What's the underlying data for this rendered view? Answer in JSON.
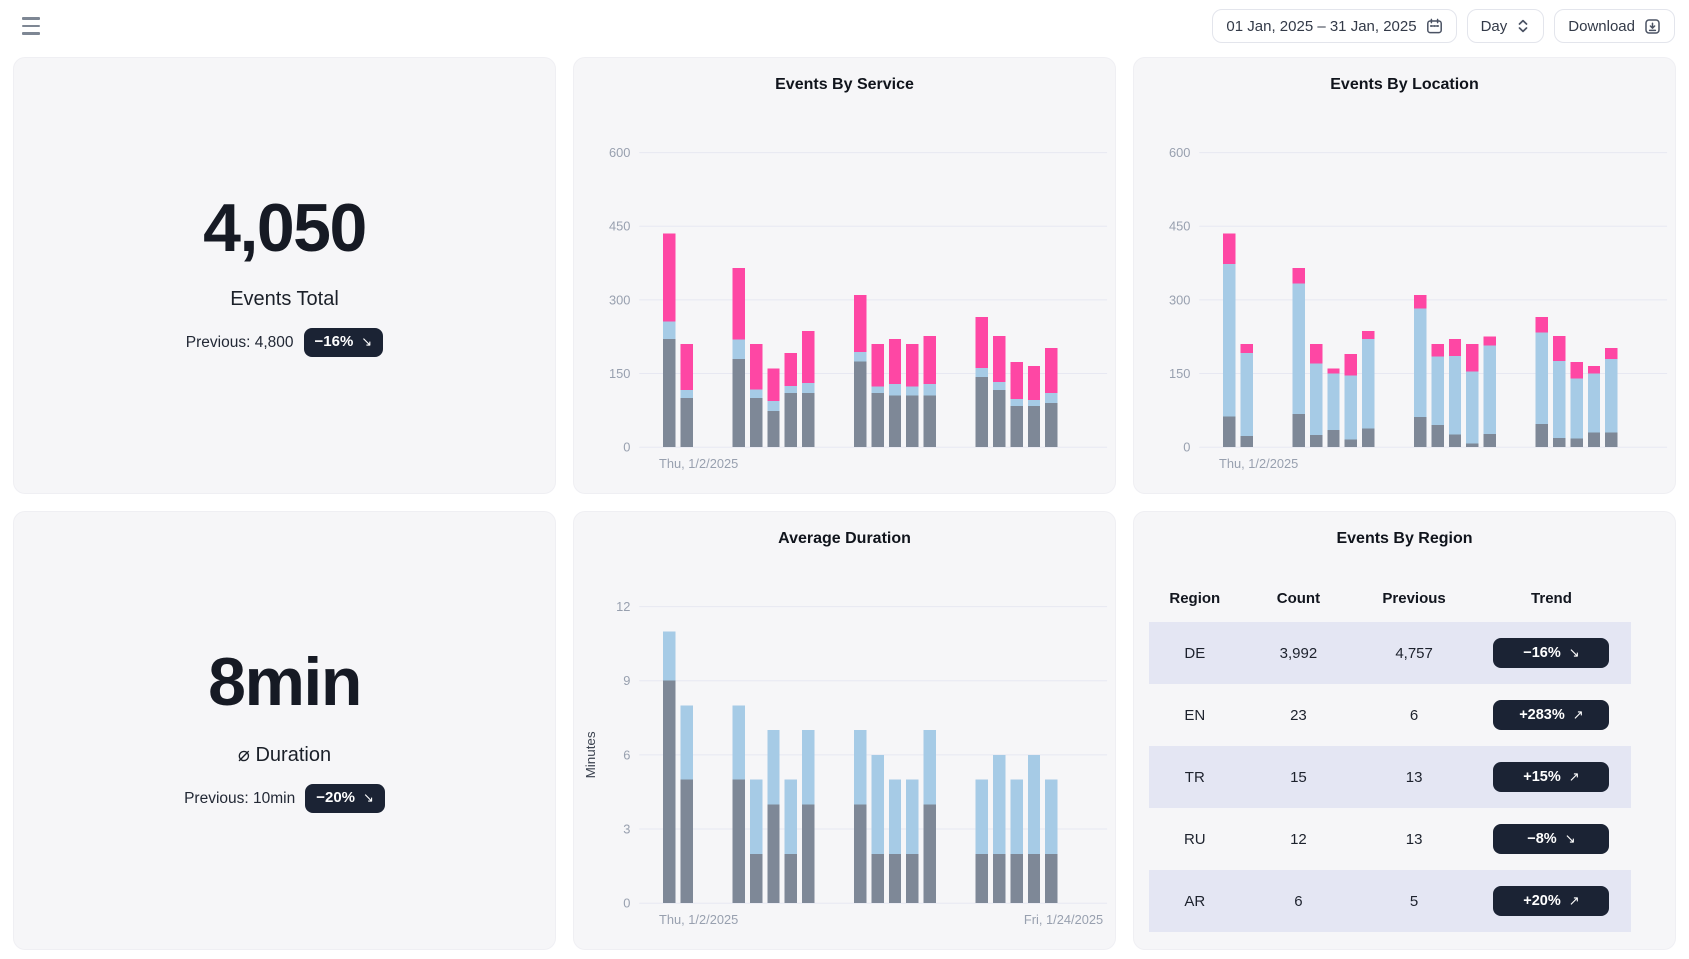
{
  "topbar": {
    "date_range": "01 Jan, 2025 – 31 Jan, 2025",
    "granularity": "Day",
    "download_label": "Download"
  },
  "icons": {
    "menu": "hamburger",
    "date_range": "calendar",
    "granularity": "chevron-up-down",
    "download": "download-tray",
    "trend_up": "↗",
    "trend_down": "↘"
  },
  "colors": {
    "bar_slate": "#7e8897",
    "bar_blue": "#a6cbe6",
    "bar_pink": "#fe47a4",
    "badge_bg": "#1b2334",
    "stripe": "#e4e6f3",
    "panel_bg": "#f6f6f8",
    "gridline": "#e7e8f2",
    "tick_text": "#98a0af"
  },
  "kpi_cards": [
    {
      "value": "4,050",
      "label": "Events Total",
      "previous_label": "Previous: 4,800",
      "trend": "−16%",
      "arrow": "↘",
      "direction": "down"
    },
    {
      "value": "8min",
      "label": "⌀ Duration",
      "previous_label": "Previous: 10min",
      "trend": "−20%",
      "arrow": "↘",
      "direction": "down"
    }
  ],
  "chart_data": [
    {
      "type": "bar",
      "stacked": true,
      "title": "Events By Service",
      "xlabel_left": "Thu, 1/2/2025",
      "xlabel_right": "",
      "ylabel": "",
      "ylim": [
        0,
        600
      ],
      "y_ticks": [
        0,
        150,
        300,
        450,
        600
      ],
      "grid": true,
      "legend": "none",
      "x_slots": 25,
      "bar_slots": [
        1,
        2,
        5,
        6,
        7,
        8,
        9,
        12,
        13,
        14,
        15,
        16,
        19,
        20,
        21,
        22,
        23
      ],
      "dates_note_left": "Thu, 1/2/2025",
      "series": [
        {
          "name": "segment-bottom",
          "color": "#7e8897",
          "values": [
            220,
            100,
            180,
            100,
            74,
            110,
            110,
            175,
            110,
            105,
            105,
            105,
            143,
            116,
            84,
            84,
            90
          ]
        },
        {
          "name": "segment-middle",
          "color": "#a6cbe6",
          "values": [
            36,
            17,
            39,
            18,
            20,
            15,
            21,
            19,
            14,
            24,
            19,
            24,
            18,
            17,
            14,
            12,
            20
          ]
        },
        {
          "name": "segment-top",
          "color": "#fe47a4",
          "values": [
            179,
            93,
            146,
            92,
            66,
            67,
            106,
            116,
            86,
            91,
            86,
            97,
            104,
            93,
            76,
            69,
            92
          ]
        }
      ]
    },
    {
      "type": "bar",
      "stacked": true,
      "title": "Events By Location",
      "xlabel_left": "Thu, 1/2/2025",
      "xlabel_right": "",
      "ylabel": "",
      "ylim": [
        0,
        600
      ],
      "y_ticks": [
        0,
        150,
        300,
        450,
        600
      ],
      "grid": true,
      "legend": "none",
      "x_slots": 25,
      "bar_slots": [
        1,
        2,
        5,
        6,
        7,
        8,
        9,
        12,
        13,
        14,
        15,
        16,
        19,
        20,
        21,
        22,
        23
      ],
      "series": [
        {
          "name": "segment-bottom",
          "color": "#7e8897",
          "values": [
            63,
            23,
            68,
            25,
            35,
            16,
            38,
            62,
            45,
            26,
            8,
            27,
            47,
            19,
            18,
            30,
            30
          ]
        },
        {
          "name": "segment-middle",
          "color": "#a6cbe6",
          "values": [
            310,
            169,
            265,
            145,
            115,
            130,
            182,
            220,
            140,
            160,
            146,
            180,
            187,
            157,
            122,
            120,
            150
          ]
        },
        {
          "name": "segment-top",
          "color": "#fe47a4",
          "values": [
            62,
            18,
            32,
            40,
            10,
            44,
            17,
            28,
            25,
            34,
            56,
            18,
            31,
            50,
            34,
            15,
            22
          ]
        }
      ]
    },
    {
      "type": "bar",
      "stacked": true,
      "title": "Average Duration",
      "xlabel_left": "Thu, 1/2/2025",
      "xlabel_right": "Fri, 1/24/2025",
      "ylabel": "Minutes",
      "ylim": [
        0,
        12
      ],
      "y_ticks": [
        0,
        3,
        6,
        9,
        12
      ],
      "grid": true,
      "legend": "none",
      "x_slots": 25,
      "bar_slots": [
        1,
        2,
        5,
        6,
        7,
        8,
        9,
        12,
        13,
        14,
        15,
        16,
        19,
        20,
        21,
        22,
        23
      ],
      "series": [
        {
          "name": "segment-bottom",
          "color": "#7e8897",
          "values": [
            9,
            5,
            5,
            2,
            4,
            2,
            4,
            4,
            2,
            2,
            2,
            4,
            2,
            2,
            2,
            2,
            2
          ]
        },
        {
          "name": "segment-top",
          "color": "#a6cbe6",
          "values": [
            2,
            3,
            3,
            3,
            3,
            3,
            3,
            3,
            4,
            3,
            3,
            3,
            3,
            4,
            3,
            4,
            3
          ]
        }
      ]
    }
  ],
  "region_table": {
    "title": "Events By Region",
    "headers": [
      "Region",
      "Count",
      "Previous",
      "Trend"
    ],
    "rows": [
      {
        "region": "DE",
        "count": "3,992",
        "previous": "4,757",
        "trend": "−16%",
        "arrow": "↘",
        "direction": "down"
      },
      {
        "region": "EN",
        "count": "23",
        "previous": "6",
        "trend": "+283%",
        "arrow": "↗",
        "direction": "up"
      },
      {
        "region": "TR",
        "count": "15",
        "previous": "13",
        "trend": "+15%",
        "arrow": "↗",
        "direction": "up"
      },
      {
        "region": "RU",
        "count": "12",
        "previous": "13",
        "trend": "−8%",
        "arrow": "↘",
        "direction": "down"
      },
      {
        "region": "AR",
        "count": "6",
        "previous": "5",
        "trend": "+20%",
        "arrow": "↗",
        "direction": "up"
      }
    ]
  }
}
